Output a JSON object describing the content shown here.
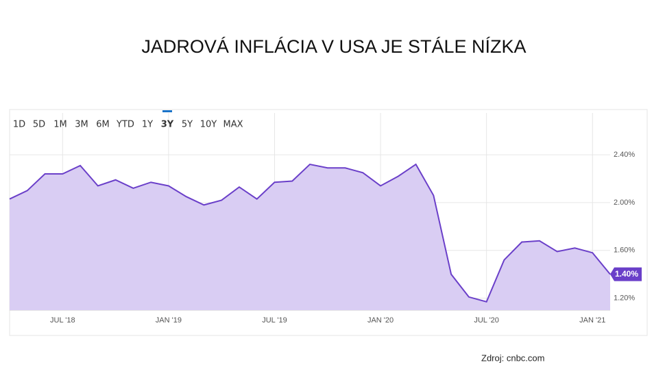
{
  "chart_data": {
    "type": "area",
    "title": "JADROVÁ INFLÁCIA V USA JE STÁLE NÍZKA",
    "source": "Zdroj: cnbc.com",
    "range_buttons": [
      "1D",
      "5D",
      "1M",
      "3M",
      "6M",
      "YTD",
      "1Y",
      "3Y",
      "5Y",
      "10Y",
      "MAX"
    ],
    "selected_range_index": 7,
    "categories": [
      "",
      null,
      null,
      "JUL '18",
      null,
      null,
      null,
      null,
      null,
      "JAN '19",
      null,
      null,
      null,
      null,
      null,
      "JUL '19",
      null,
      null,
      null,
      null,
      null,
      "JAN '20",
      null,
      null,
      null,
      null,
      null,
      "JUL '20",
      null,
      null,
      null,
      null,
      null,
      "JAN '21",
      null
    ],
    "values": [
      2.03,
      2.1,
      2.24,
      2.24,
      2.31,
      2.14,
      2.19,
      2.12,
      2.17,
      2.14,
      2.05,
      1.98,
      2.02,
      2.13,
      2.03,
      2.17,
      2.18,
      2.32,
      2.29,
      2.29,
      2.25,
      2.14,
      2.22,
      2.32,
      2.06,
      1.4,
      1.21,
      1.17,
      1.52,
      1.67,
      1.68,
      1.59,
      1.62,
      1.58,
      1.4
    ],
    "value_labels": [
      null,
      null,
      null,
      null,
      null,
      null,
      null,
      null,
      null,
      null,
      null,
      null,
      null,
      null,
      null,
      null,
      null,
      null,
      null,
      null,
      null,
      null,
      null,
      null,
      null,
      null,
      null,
      null,
      null,
      null,
      null,
      null,
      null,
      null,
      "1.40%"
    ],
    "color": "#6a3fc9",
    "fill_color": "#d9cdf3",
    "ylim": [
      1.1,
      2.75
    ],
    "yticks": [
      {
        "value": 1.2,
        "label": "1.20%"
      },
      {
        "value": 1.6,
        "label": "1.60%"
      },
      {
        "value": 2.0,
        "label": "2.00%"
      },
      {
        "value": 2.4,
        "label": "2.40%"
      }
    ],
    "grid": true
  }
}
